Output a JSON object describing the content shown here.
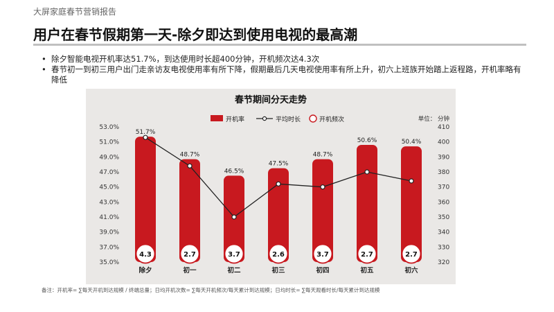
{
  "header": {
    "report_name": "大屏家庭春节营销报告",
    "title": "用户在春节假期第一天-除夕即达到使用电视的最高潮"
  },
  "bullets": [
    "除夕智能电视开机率达51.7%，到达使用时长超400分钟，开机频次达4.3次",
    "春节初一到初三用户出门走亲访友电视使用率有所下降，假期最后几天电视使用率有所上升，初六上班族开始踏上返程路，开机率略有降低"
  ],
  "footnote": "备注：开机率= ∑每天开机到达规模 / 终端总量；日均开机次数= ∑每天开机频次/每天累计到达规模；日均时长= ∑每天观看时长/每天累计到达规模",
  "colors": {
    "bar": "#c8191f",
    "line": "#222222",
    "circle_stroke": "#c8191f",
    "panel": "#eae8e6"
  },
  "chart_data": {
    "type": "bar",
    "title": "春节期间分天走势",
    "unit_label": "单位：  分钟",
    "categories": [
      "除夕",
      "初一",
      "初二",
      "初三",
      "初四",
      "初五",
      "初六"
    ],
    "legend": [
      "开机率",
      "平均时长",
      "开机频次"
    ],
    "legend_position": "top",
    "series": [
      {
        "name": "开机率",
        "kind": "bar",
        "axis": "left",
        "values": [
          51.7,
          48.7,
          46.5,
          47.5,
          48.7,
          50.6,
          50.4
        ],
        "labels": [
          "51.7%",
          "48.7%",
          "46.5%",
          "47.5%",
          "48.7%",
          "50.6%",
          "50.4%"
        ]
      },
      {
        "name": "平均时长",
        "kind": "line",
        "axis": "right",
        "values": [
          403,
          384,
          350,
          372,
          370,
          380,
          374
        ]
      },
      {
        "name": "开机频次",
        "kind": "circle",
        "values": [
          "4.3",
          "2.7",
          "3.7",
          "2.6",
          "3.7",
          "2.7",
          "2.7"
        ]
      }
    ],
    "left_axis": {
      "ylim": [
        35,
        53
      ],
      "ticks": [
        "53.0%",
        "51.0%",
        "49.0%",
        "47.0%",
        "45.0%",
        "43.0%",
        "41.0%",
        "39.0%",
        "37.0%",
        "35.0%"
      ]
    },
    "right_axis": {
      "ylim": [
        320,
        410
      ],
      "ticks": [
        "410",
        "400",
        "390",
        "380",
        "370",
        "360",
        "350",
        "340",
        "330",
        "320"
      ]
    },
    "grid": false
  }
}
